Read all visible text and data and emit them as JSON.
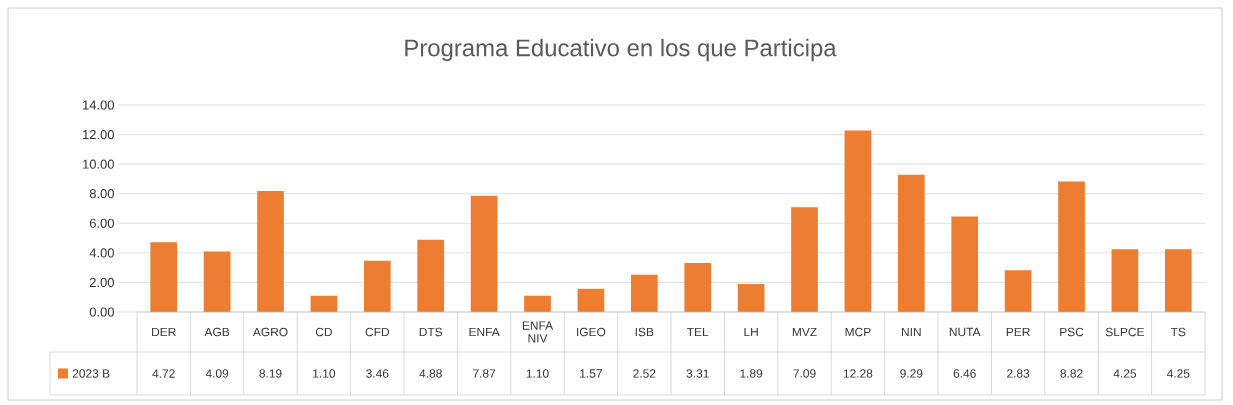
{
  "chart_data": {
    "type": "bar",
    "title": "Programa Educativo en los que Participa",
    "categories": [
      "DER",
      "AGB",
      "AGRO",
      "CD",
      "CFD",
      "DTS",
      "ENFA",
      "ENFA NIV",
      "IGEO",
      "ISB",
      "TEL",
      "LH",
      "MVZ",
      "MCP",
      "NIN",
      "NUTA",
      "PER",
      "PSC",
      "SLPCE",
      "TS"
    ],
    "series": [
      {
        "name": "2023 B",
        "color": "#ed7d31",
        "values": [
          4.72,
          4.09,
          8.19,
          1.1,
          3.46,
          4.88,
          7.87,
          1.1,
          1.57,
          2.52,
          3.31,
          1.89,
          7.09,
          12.28,
          9.29,
          6.46,
          2.83,
          8.82,
          4.25,
          4.25
        ],
        "value_labels": [
          "4.72",
          "4.09",
          "8.19",
          "1.10",
          "3.46",
          "4.88",
          "7.87",
          "1.10",
          "1.57",
          "2.52",
          "3.31",
          "1.89",
          "7.09",
          "12.28",
          "9.29",
          "6.46",
          "2.83",
          "8.82",
          "4.25",
          "4.25"
        ]
      }
    ],
    "ylim": [
      0,
      14
    ],
    "yticks": [
      {
        "value": 0,
        "label": "0.00"
      },
      {
        "value": 2,
        "label": "2.00"
      },
      {
        "value": 4,
        "label": "4.00"
      },
      {
        "value": 6,
        "label": "6.00"
      },
      {
        "value": 8,
        "label": "8.00"
      },
      {
        "value": 10,
        "label": "10.00"
      },
      {
        "value": 12,
        "label": "12.00"
      },
      {
        "value": 14,
        "label": "14.00"
      }
    ],
    "grid": "y",
    "legend": "bottom left"
  }
}
